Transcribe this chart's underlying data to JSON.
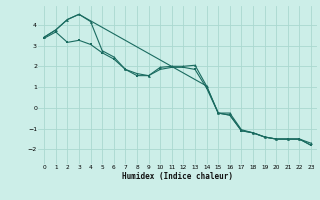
{
  "title": "",
  "xlabel": "Humidex (Indice chaleur)",
  "background_color": "#cceee8",
  "grid_color": "#aad8d0",
  "line_color": "#1a6b60",
  "xlim": [
    -0.5,
    23.5
  ],
  "ylim": [
    -2.7,
    4.9
  ],
  "xticks": [
    0,
    1,
    2,
    3,
    4,
    5,
    6,
    7,
    8,
    9,
    10,
    11,
    12,
    13,
    14,
    15,
    16,
    17,
    18,
    19,
    20,
    21,
    22,
    23
  ],
  "yticks": [
    -2,
    -1,
    0,
    1,
    2,
    3,
    4
  ],
  "series1_x": [
    0,
    1,
    2,
    3,
    4,
    5,
    6,
    7,
    8,
    9,
    10,
    11,
    12,
    13,
    14,
    15,
    16,
    17,
    18,
    19,
    20,
    21,
    22,
    23
  ],
  "series1_y": [
    3.4,
    3.75,
    4.25,
    4.5,
    4.15,
    2.75,
    2.45,
    1.85,
    1.65,
    1.55,
    1.95,
    2.0,
    2.0,
    2.05,
    1.05,
    -0.25,
    -0.25,
    -1.05,
    -1.2,
    -1.4,
    -1.5,
    -1.5,
    -1.5,
    -1.7
  ],
  "series2_x": [
    0,
    1,
    2,
    3,
    4,
    5,
    6,
    7,
    8,
    9,
    10,
    11,
    12,
    13,
    14,
    15,
    16,
    17,
    18,
    19,
    20,
    21,
    22,
    23
  ],
  "series2_y": [
    3.35,
    3.65,
    3.15,
    3.25,
    3.05,
    2.65,
    2.35,
    1.85,
    1.55,
    1.55,
    1.85,
    1.95,
    1.95,
    1.85,
    0.95,
    -0.25,
    -0.35,
    -1.1,
    -1.2,
    -1.4,
    -1.5,
    -1.5,
    -1.5,
    -1.8
  ],
  "series3_x": [
    0,
    1,
    2,
    3,
    14,
    15,
    16,
    17,
    18,
    19,
    20,
    21,
    22,
    23
  ],
  "series3_y": [
    3.4,
    3.75,
    4.25,
    4.5,
    1.05,
    -0.25,
    -0.35,
    -1.1,
    -1.2,
    -1.4,
    -1.5,
    -1.5,
    -1.5,
    -1.8
  ]
}
